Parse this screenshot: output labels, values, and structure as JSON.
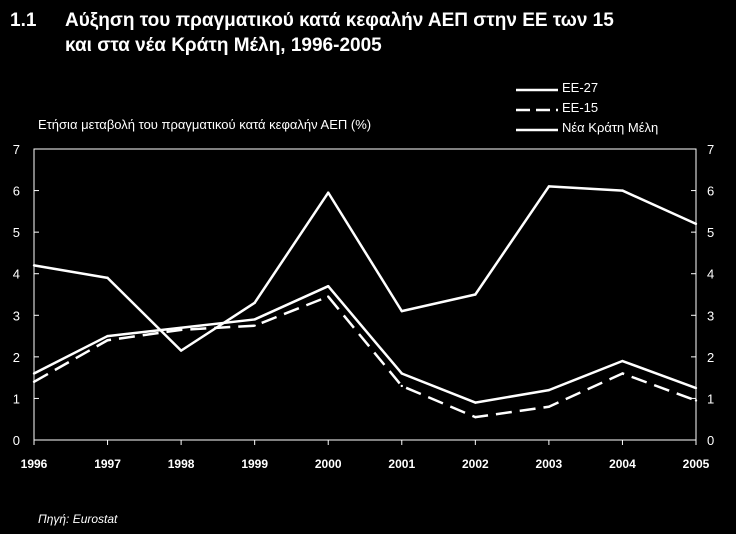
{
  "title": {
    "number": "1.1",
    "line1": "Αύξηση του πραγματικού κατά κεφαλήν ΑΕΠ στην ΕΕ των 15",
    "line2": "και στα νέα  Κράτη  Μέλη, 1996-2005"
  },
  "source": "Πηγή: Eurostat",
  "chart_data": {
    "type": "line",
    "ylabel": "Ετήσια μεταβολή του πραγματικού κατά κεφαλήν ΑΕΠ (%)",
    "x": [
      "1996",
      "1997",
      "1998",
      "1999",
      "2000",
      "2001",
      "2002",
      "2003",
      "2004",
      "2005"
    ],
    "ylim": [
      0,
      7
    ],
    "yticks": [
      0,
      1,
      2,
      3,
      4,
      5,
      6,
      7
    ],
    "grid": false,
    "legend_position": "top-right",
    "series": [
      {
        "name": "ΕΕ-27",
        "style": "solid",
        "values": [
          1.6,
          2.5,
          2.7,
          2.9,
          3.7,
          1.6,
          0.9,
          1.2,
          1.9,
          1.25
        ]
      },
      {
        "name": "ΕΕ-15",
        "style": "dashed",
        "values": [
          1.4,
          2.4,
          2.65,
          2.75,
          3.45,
          1.3,
          0.55,
          0.8,
          1.6,
          0.95
        ]
      },
      {
        "name": "Νέα Κράτη Μέλη",
        "style": "solid",
        "values": [
          4.2,
          3.9,
          2.15,
          3.3,
          5.95,
          3.1,
          3.5,
          6.1,
          6.0,
          5.2
        ]
      }
    ],
    "colors": {
      "background": "#000000",
      "lines": "#ffffff"
    }
  }
}
